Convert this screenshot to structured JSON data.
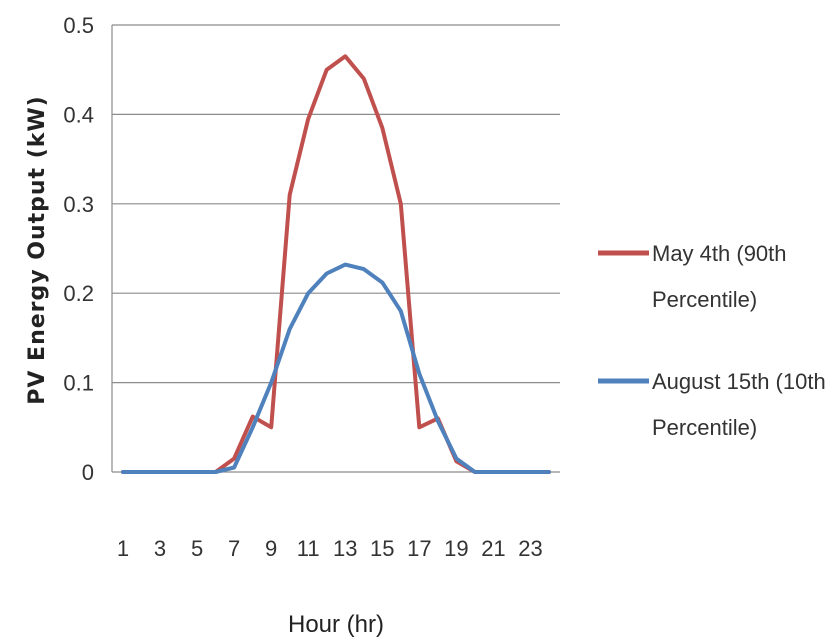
{
  "chart_data": {
    "type": "line",
    "title": "",
    "xlabel": "Hour (hr)",
    "ylabel": "PV Energy Output (kW)",
    "x": [
      1,
      2,
      3,
      4,
      5,
      6,
      7,
      8,
      9,
      10,
      11,
      12,
      13,
      14,
      15,
      16,
      17,
      18,
      19,
      20,
      21,
      22,
      23,
      24
    ],
    "x_tick_labels": [
      "1",
      "3",
      "5",
      "7",
      "9",
      "11",
      "13",
      "15",
      "17",
      "19",
      "21",
      "23"
    ],
    "y_tick_labels": [
      "0",
      "0.1",
      "0.2",
      "0.3",
      "0.4",
      "0.5"
    ],
    "ylim": [
      0,
      0.5
    ],
    "grid": true,
    "legend_position": "right",
    "series": [
      {
        "name": "May 4th (90th Percentile)",
        "legend_lines": [
          "May 4th (90th",
          "Percentile)"
        ],
        "color": "#C0504D",
        "values": [
          0,
          0,
          0,
          0,
          0,
          0,
          0.015,
          0.062,
          0.05,
          0.31,
          0.395,
          0.45,
          0.465,
          0.44,
          0.385,
          0.3,
          0.05,
          0.06,
          0.012,
          0,
          0,
          0,
          0,
          0
        ]
      },
      {
        "name": "August 15th (10th Percentile)",
        "legend_lines": [
          "August 15th (10th",
          "Percentile)"
        ],
        "color": "#4F81BD",
        "values": [
          0,
          0,
          0,
          0,
          0,
          0,
          0.005,
          0.05,
          0.1,
          0.16,
          0.2,
          0.222,
          0.232,
          0.227,
          0.212,
          0.18,
          0.11,
          0.057,
          0.015,
          0,
          0,
          0,
          0,
          0
        ]
      }
    ]
  }
}
